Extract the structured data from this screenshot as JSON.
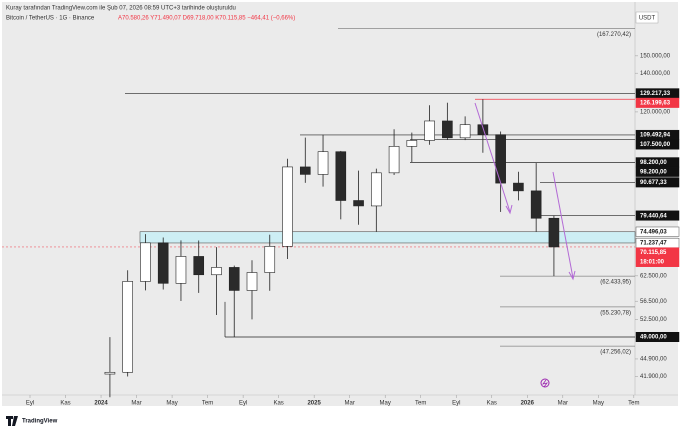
{
  "header": {
    "credit": "Kuray tarafından TradingView.com ile Şub 07, 2026 08:59 UTC+3 tarihinde oluşturuldu",
    "symbol": "Bitcoin / TetherUS · 1G · Binance",
    "ohlc": "A70.580,26 Y71.490,07 D69.718,00 K70.115,85 −464,41 (−0,66%)",
    "currency": "USDT"
  },
  "footer": {
    "brand": "TradingView"
  },
  "chart_data": {
    "type": "candlestick",
    "log_scale": true,
    "grid": false,
    "up_color": "#ffffff",
    "down_color": "#2a2a2a",
    "wick_color": "#222222",
    "x": [
      "2024-01",
      "2024-02",
      "2024-03",
      "2024-04",
      "2024-05",
      "2024-06",
      "2024-07",
      "2024-08",
      "2024-09",
      "2024-10",
      "2024-11",
      "2024-12",
      "2025-01",
      "2025-02",
      "2025-03",
      "2025-04",
      "2025-05",
      "2025-06",
      "2025-07",
      "2025-08",
      "2025-09",
      "2025-10",
      "2025-11",
      "2025-12",
      "2026-01",
      "2026-02"
    ],
    "open": [
      42280,
      42580,
      61130,
      71280,
      60670,
      67520,
      62770,
      64630,
      58970,
      63330,
      70290,
      96410,
      93580,
      102430,
      84350,
      82550,
      94170,
      104640,
      107140,
      115760,
      108250,
      114050,
      109600,
      90400,
      87650,
      78600
    ],
    "high": [
      48970,
      63900,
      73780,
      72800,
      71980,
      71950,
      70080,
      65100,
      66500,
      73620,
      99600,
      108350,
      109590,
      102750,
      95000,
      95750,
      111980,
      110530,
      123220,
      124480,
      117900,
      126199,
      111000,
      94600,
      97900,
      79440
    ],
    "low": [
      38555,
      41880,
      59000,
      59190,
      56550,
      58400,
      53480,
      49000,
      52550,
      58890,
      66830,
      90500,
      89160,
      78260,
      76600,
      74500,
      93380,
      98200,
      105300,
      107350,
      107270,
      102000,
      80600,
      84400,
      74500,
      62430
    ],
    "close": [
      42580,
      61130,
      71280,
      60670,
      67520,
      62770,
      64630,
      58970,
      63330,
      70290,
      96410,
      93580,
      102430,
      84350,
      82550,
      94170,
      104640,
      107140,
      115760,
      108250,
      114050,
      109600,
      90400,
      87650,
      78600,
      70116
    ],
    "ylim": [
      38900,
      178600
    ],
    "yticks": [
      {
        "value": 150000,
        "label": "150.000,00"
      },
      {
        "value": 140000,
        "label": "140.000,00"
      },
      {
        "value": 120000,
        "label": "120.000,00"
      },
      {
        "value": 62500,
        "label": "62.500,00"
      },
      {
        "value": 56500,
        "label": "56.500,00"
      },
      {
        "value": 52500,
        "label": "52.500,00"
      },
      {
        "value": 44900,
        "label": "44.900,00"
      },
      {
        "value": 41900,
        "label": "41.900,00"
      }
    ],
    "xticks": [
      {
        "value": "2023-09",
        "label": "Eyl"
      },
      {
        "value": "2023-11",
        "label": "Kas"
      },
      {
        "value": "2024-01",
        "label": "2024"
      },
      {
        "value": "2024-03",
        "label": "Mar"
      },
      {
        "value": "2024-05",
        "label": "May"
      },
      {
        "value": "2024-07",
        "label": "Tem"
      },
      {
        "value": "2024-09",
        "label": "Eyl"
      },
      {
        "value": "2024-11",
        "label": "Kas"
      },
      {
        "value": "2025-01",
        "label": "2025"
      },
      {
        "value": "2025-03",
        "label": "Mar"
      },
      {
        "value": "2025-05",
        "label": "May"
      },
      {
        "value": "2025-07",
        "label": "Tem"
      },
      {
        "value": "2025-09",
        "label": "Eyl"
      },
      {
        "value": "2025-11",
        "label": "Kas"
      },
      {
        "value": "2026-01",
        "label": "2026"
      },
      {
        "value": "2026-03",
        "label": "Mar"
      },
      {
        "value": "2026-05",
        "label": "May"
      },
      {
        "value": "2026-07",
        "label": "Tem"
      }
    ],
    "levels": [
      {
        "value": 167270.42,
        "label": "(167.270,42)",
        "style": "note"
      },
      {
        "value": 129217.33,
        "label": "129.217,33",
        "style": "box"
      },
      {
        "value": 126199.63,
        "label": "126.199,63",
        "style": "red"
      },
      {
        "value": 109492.94,
        "label": "109.492,94",
        "style": "box"
      },
      {
        "value": 107500,
        "label": "107.500,00",
        "style": "box"
      },
      {
        "value": 98200,
        "label": "98.200,00",
        "style": "box"
      },
      {
        "value": 98200,
        "label": "98.200,00",
        "style": "box"
      },
      {
        "value": 90677.33,
        "label": "90.677,33",
        "style": "box"
      },
      {
        "value": 79440.64,
        "label": "79.440,64",
        "style": "box"
      },
      {
        "value": 74496.03,
        "label": "74.496,03",
        "style": "zone"
      },
      {
        "value": 71237.47,
        "label": "71.237,47",
        "style": "zone"
      },
      {
        "value": 62433.95,
        "label": "(62.433,95)",
        "style": "note"
      },
      {
        "value": 55230.78,
        "label": "(55.230,78)",
        "style": "note"
      },
      {
        "value": 49000,
        "label": "49.000,00",
        "style": "box"
      },
      {
        "value": 47256.02,
        "label": "(47.256,02)",
        "style": "note"
      }
    ],
    "last_price": {
      "value": 70115.85,
      "label": "70.115,85",
      "countdown": "18:01:00",
      "color": "#f23645"
    }
  }
}
